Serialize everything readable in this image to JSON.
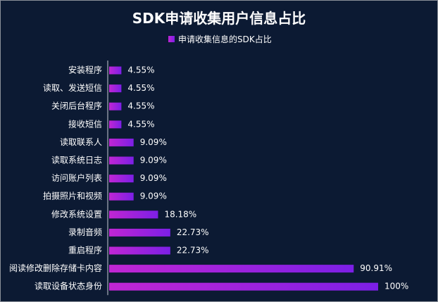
{
  "chart_data": {
    "type": "bar",
    "orientation": "horizontal",
    "title": "SDK申请收集用户信息占比",
    "legend": {
      "label": "申请收集信息的SDK占比",
      "position": "top-center"
    },
    "categories": [
      "安装程序",
      "读取、发送短信",
      "关闭后台程序",
      "接收短信",
      "读取联系人",
      "读取系统日志",
      "访问账户列表",
      "拍摄照片和视频",
      "修改系统设置",
      "录制音频",
      "重启程序",
      "阅读修改删除存储卡内容",
      "读取设备状态身份"
    ],
    "values": [
      4.55,
      4.55,
      4.55,
      4.55,
      9.09,
      9.09,
      9.09,
      9.09,
      18.18,
      22.73,
      22.73,
      90.91,
      100
    ],
    "value_labels": [
      "4.55%",
      "4.55%",
      "4.55%",
      "4.55%",
      "9.09%",
      "9.09%",
      "9.09%",
      "9.09%",
      "18.18%",
      "22.73%",
      "22.73%",
      "90.91%",
      "100%"
    ],
    "xlim": [
      0,
      100
    ],
    "grid": false,
    "colors": {
      "background": "#0c1a33",
      "bar_start": "#c026d3",
      "bar_end": "#7c1fe6",
      "text": "#ffffff",
      "axis": "#c8ccd6"
    }
  }
}
